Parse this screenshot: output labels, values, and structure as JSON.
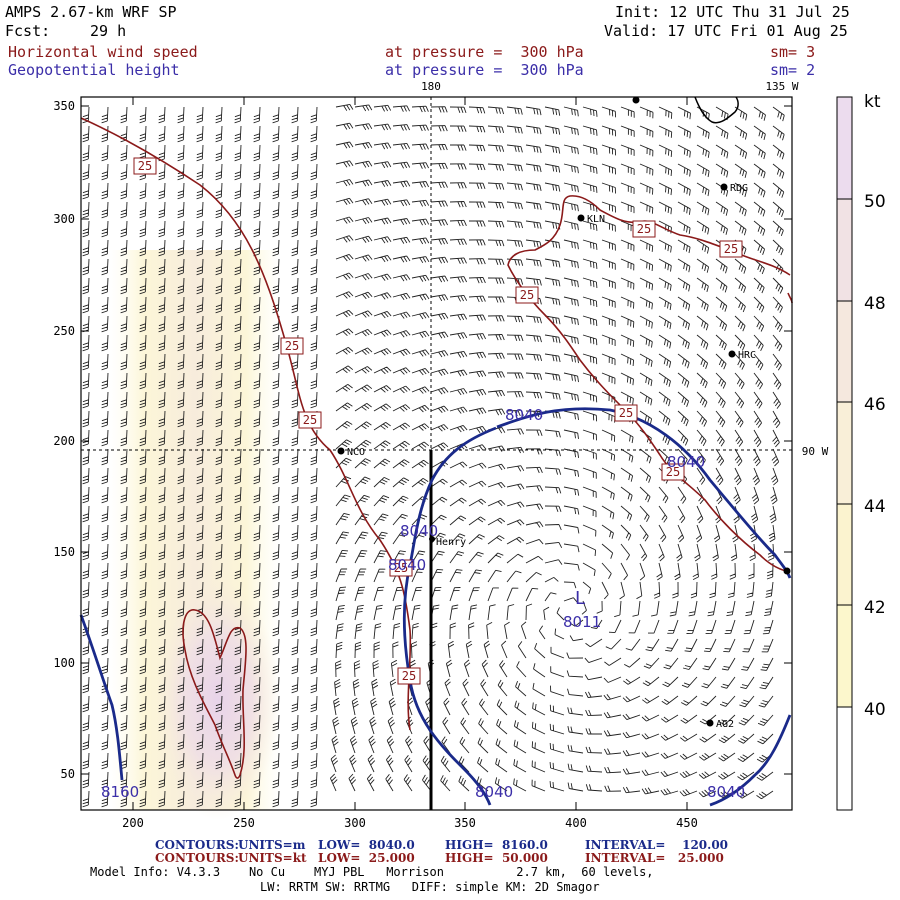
{
  "header": {
    "model": "AMPS 2.67-km WRF SP",
    "init": "Init: 12 UTC Thu 31 Jul 25",
    "fcst_label": "Fcst:",
    "fcst_value": "29 h",
    "valid": "Valid: 17 UTC Fri 01 Aug 25",
    "field1": "Horizontal wind speed",
    "field1_level": "at pressure =  300 hPa",
    "field1_sm": "sm= 3",
    "field2": "Geopotential height",
    "field2_level": "at pressure =  300 hPa",
    "field2_sm": "sm= 2"
  },
  "axes": {
    "x_ticks": [
      "200",
      "250",
      "300",
      "350",
      "400",
      "450"
    ],
    "y_ticks": [
      "350",
      "300",
      "250",
      "200",
      "150",
      "100",
      "50"
    ],
    "meridian_labels": {
      "top_180": "180",
      "top_135w": "135 W",
      "right_90w": "90 W"
    }
  },
  "stations": [
    "RDG",
    "KLN",
    "HRC",
    "NCO",
    "Henry",
    "AG2"
  ],
  "contour_labels": {
    "speed": [
      "25",
      "25",
      "25",
      "25",
      "25",
      "25",
      "25",
      "25",
      "25",
      "25"
    ],
    "height": [
      "8040",
      "8040",
      "8040",
      "8040",
      "8040",
      "8040",
      "8160"
    ],
    "low_center": "L",
    "low_value": "8011"
  },
  "colorbar": {
    "unit": "kt",
    "labels": [
      "50",
      "48",
      "46",
      "44",
      "42",
      "40"
    ],
    "colors": [
      "#ecdcee",
      "#f1e2e4",
      "#f5e8de",
      "#f9efd8",
      "#fbf3cf",
      "#fcf7cc",
      "#fffdf2",
      "#ffffff"
    ]
  },
  "footer": {
    "c1_label": "CONTOURS:",
    "c1_units": "UNITS=m",
    "c1_low": "LOW=  8040.0",
    "c1_high": "HIGH=  8160.0",
    "c1_int": "INTERVAL=    120.00",
    "c2_label": "CONTOURS:",
    "c2_units": "UNITS=kt",
    "c2_low": "LOW=  25.000",
    "c2_high": "HIGH=  50.000",
    "c2_int": "INTERVAL=   25.000",
    "info1": "Model Info: V4.3.3    No Cu    MYJ PBL   Morrison          2.7 km,  60 levels,",
    "info2": "LW: RRTM SW: RRTMG   DIFF: simple KM: 2D Smagor"
  }
}
